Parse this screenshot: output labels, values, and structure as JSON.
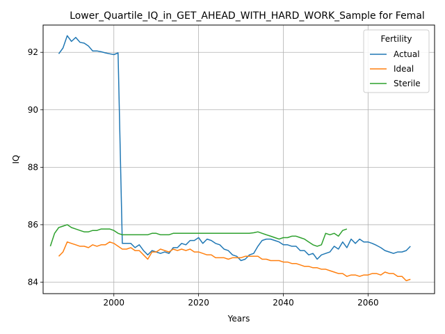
{
  "chart_data": {
    "type": "line",
    "title": "Lower_Quartile_IQ_in_GET_AHEAD_WITH_HARD_WORK_Sample for Femal",
    "xlabel": "Years",
    "ylabel": "IQ",
    "xlim": [
      1983.3,
      2075.7
    ],
    "ylim": [
      83.6,
      92.95
    ],
    "xticks": [
      2000,
      2020,
      2040,
      2060
    ],
    "yticks": [
      84,
      86,
      88,
      90,
      92
    ],
    "grid": true,
    "legend": {
      "title": "Fertility",
      "position": "top-right"
    },
    "series": [
      {
        "name": "Actual",
        "color": "#1f77b4",
        "x": [
          1987,
          1988,
          1989,
          1990,
          1991,
          1992,
          1993,
          1994,
          1995,
          1996,
          1997,
          1998,
          1999,
          2000,
          2001,
          2002,
          2003,
          2004,
          2005,
          2006,
          2007,
          2008,
          2009,
          2010,
          2011,
          2012,
          2013,
          2014,
          2015,
          2016,
          2017,
          2018,
          2019,
          2020,
          2021,
          2022,
          2023,
          2024,
          2025,
          2026,
          2027,
          2028,
          2029,
          2030,
          2031,
          2032,
          2033,
          2034,
          2035,
          2036,
          2037,
          2038,
          2039,
          2040,
          2041,
          2042,
          2043,
          2044,
          2045,
          2046,
          2047,
          2048,
          2049,
          2050,
          2051,
          2052,
          2053,
          2054,
          2055,
          2056,
          2057,
          2058,
          2059,
          2060,
          2061,
          2062,
          2063,
          2064,
          2065,
          2066,
          2067,
          2068,
          2069,
          2070
        ],
        "y": [
          91.95,
          92.15,
          92.58,
          92.38,
          92.52,
          92.35,
          92.32,
          92.22,
          92.05,
          92.05,
          92.02,
          91.98,
          91.95,
          91.92,
          91.98,
          85.35,
          85.35,
          85.35,
          85.2,
          85.3,
          85.1,
          84.95,
          85.1,
          85.05,
          85.0,
          85.05,
          85.0,
          85.2,
          85.2,
          85.35,
          85.3,
          85.45,
          85.45,
          85.55,
          85.35,
          85.5,
          85.45,
          85.35,
          85.3,
          85.15,
          85.1,
          84.95,
          84.9,
          84.75,
          84.8,
          84.95,
          85.0,
          85.25,
          85.45,
          85.5,
          85.5,
          85.45,
          85.4,
          85.3,
          85.3,
          85.25,
          85.25,
          85.1,
          85.1,
          84.95,
          85.0,
          84.8,
          84.95,
          85.0,
          85.05,
          85.25,
          85.15,
          85.4,
          85.2,
          85.5,
          85.35,
          85.5,
          85.4,
          85.4,
          85.35,
          85.28,
          85.2,
          85.1,
          85.05,
          85.0,
          85.05,
          85.05,
          85.1,
          85.25
        ]
      },
      {
        "name": "Ideal",
        "color": "#ff7f0e",
        "x": [
          1987,
          1988,
          1989,
          1990,
          1991,
          1992,
          1993,
          1994,
          1995,
          1996,
          1997,
          1998,
          1999,
          2000,
          2001,
          2002,
          2003,
          2004,
          2005,
          2006,
          2007,
          2008,
          2009,
          2010,
          2011,
          2012,
          2013,
          2014,
          2015,
          2016,
          2017,
          2018,
          2019,
          2020,
          2021,
          2022,
          2023,
          2024,
          2025,
          2026,
          2027,
          2028,
          2029,
          2030,
          2031,
          2032,
          2033,
          2034,
          2035,
          2036,
          2037,
          2038,
          2039,
          2040,
          2041,
          2042,
          2043,
          2044,
          2045,
          2046,
          2047,
          2048,
          2049,
          2050,
          2051,
          2052,
          2053,
          2054,
          2055,
          2056,
          2057,
          2058,
          2059,
          2060,
          2061,
          2062,
          2063,
          2064,
          2065,
          2066,
          2067,
          2068,
          2069,
          2070
        ],
        "y": [
          84.9,
          85.05,
          85.4,
          85.35,
          85.3,
          85.25,
          85.25,
          85.2,
          85.3,
          85.25,
          85.3,
          85.3,
          85.4,
          85.35,
          85.25,
          85.15,
          85.15,
          85.2,
          85.1,
          85.1,
          84.95,
          84.8,
          85.05,
          85.05,
          85.15,
          85.1,
          85.05,
          85.15,
          85.1,
          85.15,
          85.1,
          85.15,
          85.05,
          85.05,
          85.0,
          84.95,
          84.95,
          84.85,
          84.85,
          84.85,
          84.8,
          84.85,
          84.85,
          84.85,
          84.9,
          84.9,
          84.9,
          84.9,
          84.8,
          84.8,
          84.75,
          84.75,
          84.75,
          84.7,
          84.7,
          84.65,
          84.65,
          84.6,
          84.55,
          84.55,
          84.5,
          84.5,
          84.45,
          84.45,
          84.4,
          84.35,
          84.3,
          84.3,
          84.2,
          84.25,
          84.25,
          84.2,
          84.25,
          84.25,
          84.3,
          84.3,
          84.25,
          84.35,
          84.3,
          84.3,
          84.2,
          84.2,
          84.05,
          84.1
        ]
      },
      {
        "name": "Sterile",
        "color": "#2ca02c",
        "x": [
          1985,
          1986,
          1987,
          1988,
          1989,
          1990,
          1991,
          1992,
          1993,
          1994,
          1995,
          1996,
          1997,
          1998,
          1999,
          2000,
          2001,
          2002,
          2003,
          2004,
          2005,
          2006,
          2007,
          2008,
          2009,
          2010,
          2011,
          2012,
          2013,
          2014,
          2015,
          2016,
          2017,
          2018,
          2019,
          2020,
          2021,
          2022,
          2023,
          2024,
          2025,
          2026,
          2027,
          2028,
          2029,
          2030,
          2031,
          2032,
          2033,
          2034,
          2035,
          2036,
          2037,
          2038,
          2039,
          2040,
          2041,
          2042,
          2043,
          2044,
          2045,
          2046,
          2047,
          2048,
          2049,
          2050,
          2051,
          2052,
          2053,
          2054,
          2055
        ],
        "y": [
          85.25,
          85.7,
          85.9,
          85.95,
          86.0,
          85.9,
          85.85,
          85.8,
          85.75,
          85.75,
          85.8,
          85.8,
          85.85,
          85.85,
          85.85,
          85.8,
          85.7,
          85.65,
          85.65,
          85.65,
          85.65,
          85.65,
          85.65,
          85.65,
          85.7,
          85.7,
          85.65,
          85.65,
          85.65,
          85.7,
          85.7,
          85.7,
          85.7,
          85.7,
          85.7,
          85.7,
          85.7,
          85.7,
          85.7,
          85.7,
          85.7,
          85.7,
          85.7,
          85.7,
          85.7,
          85.7,
          85.7,
          85.7,
          85.72,
          85.75,
          85.7,
          85.65,
          85.6,
          85.55,
          85.5,
          85.55,
          85.55,
          85.6,
          85.6,
          85.55,
          85.5,
          85.4,
          85.3,
          85.25,
          85.3,
          85.7,
          85.65,
          85.7,
          85.6,
          85.8,
          85.85
        ]
      }
    ]
  }
}
